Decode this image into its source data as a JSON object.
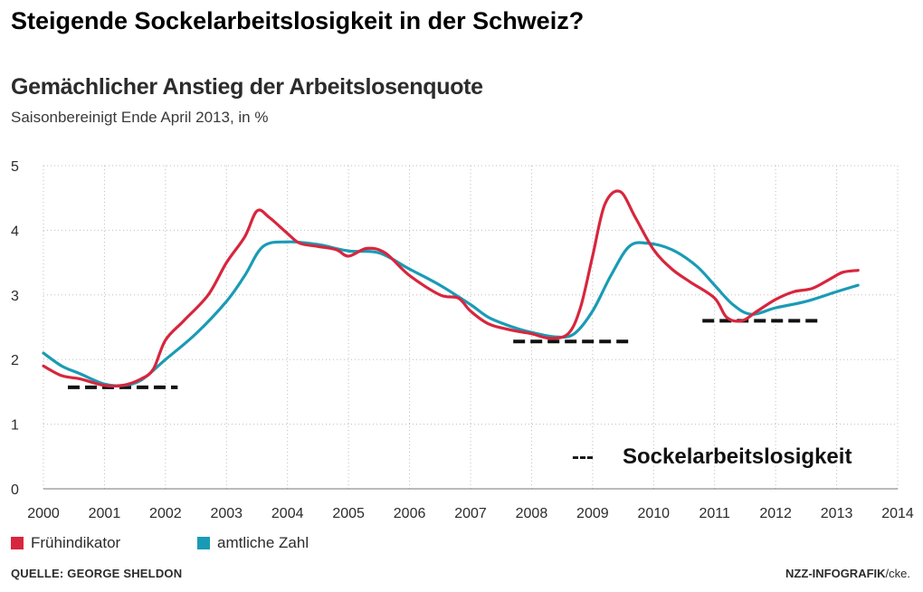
{
  "headline": "Steigende Sockelarbeitslosigkeit in der Schweiz?",
  "colors": {
    "fruehindikator": "#d7263d",
    "amtliche": "#1a9bb5",
    "sockel": "#111111",
    "grid": "#bdbdbd"
  },
  "legend": {
    "series1": "Frühindikator",
    "series2": "amtliche Zahl",
    "sockel": "Sockelarbeitslosigkeit",
    "sockel_symbol": "---"
  },
  "source": "QUELLE: GEORGE SHELDON",
  "credit_bold": "NZZ-INFOGRAFIK",
  "credit_rest": "/cke.",
  "chart_data": {
    "type": "line",
    "title": "Gemächlicher Anstieg der Arbeitslosenquote",
    "subtitle": "Saisonbereinigt Ende April 2013, in %",
    "xlim": [
      2000,
      2014
    ],
    "ylim": [
      0,
      5
    ],
    "xticks": [
      2000,
      2001,
      2002,
      2003,
      2004,
      2005,
      2006,
      2007,
      2008,
      2009,
      2010,
      2011,
      2012,
      2013,
      2014
    ],
    "yticks": [
      0,
      1,
      2,
      3,
      4,
      5
    ],
    "grid": true,
    "series": [
      {
        "name": "Frühindikator",
        "points": [
          [
            2000,
            1.9
          ],
          [
            2000.3,
            1.75
          ],
          [
            2000.6,
            1.7
          ],
          [
            2001,
            1.6
          ],
          [
            2001.3,
            1.6
          ],
          [
            2001.6,
            1.7
          ],
          [
            2001.8,
            1.85
          ],
          [
            2002,
            2.3
          ],
          [
            2002.3,
            2.6
          ],
          [
            2002.7,
            3.0
          ],
          [
            2003,
            3.5
          ],
          [
            2003.3,
            3.9
          ],
          [
            2003.5,
            4.3
          ],
          [
            2003.7,
            4.2
          ],
          [
            2004,
            3.95
          ],
          [
            2004.2,
            3.8
          ],
          [
            2004.5,
            3.75
          ],
          [
            2004.8,
            3.7
          ],
          [
            2005,
            3.6
          ],
          [
            2005.3,
            3.72
          ],
          [
            2005.6,
            3.65
          ],
          [
            2006,
            3.3
          ],
          [
            2006.5,
            3.0
          ],
          [
            2006.8,
            2.95
          ],
          [
            2007,
            2.75
          ],
          [
            2007.3,
            2.55
          ],
          [
            2007.7,
            2.45
          ],
          [
            2008,
            2.4
          ],
          [
            2008.3,
            2.33
          ],
          [
            2008.6,
            2.4
          ],
          [
            2008.8,
            2.8
          ],
          [
            2009,
            3.6
          ],
          [
            2009.2,
            4.4
          ],
          [
            2009.45,
            4.6
          ],
          [
            2009.7,
            4.2
          ],
          [
            2010,
            3.7
          ],
          [
            2010.3,
            3.4
          ],
          [
            2010.6,
            3.2
          ],
          [
            2011,
            2.95
          ],
          [
            2011.2,
            2.65
          ],
          [
            2011.45,
            2.6
          ],
          [
            2011.7,
            2.75
          ],
          [
            2012,
            2.93
          ],
          [
            2012.3,
            3.05
          ],
          [
            2012.6,
            3.1
          ],
          [
            2012.9,
            3.25
          ],
          [
            2013.1,
            3.35
          ],
          [
            2013.35,
            3.38
          ]
        ]
      },
      {
        "name": "amtliche Zahl",
        "points": [
          [
            2000,
            2.1
          ],
          [
            2000.3,
            1.9
          ],
          [
            2000.6,
            1.78
          ],
          [
            2001,
            1.62
          ],
          [
            2001.3,
            1.6
          ],
          [
            2001.6,
            1.68
          ],
          [
            2002,
            2.0
          ],
          [
            2002.5,
            2.4
          ],
          [
            2003,
            2.9
          ],
          [
            2003.3,
            3.3
          ],
          [
            2003.6,
            3.75
          ],
          [
            2004,
            3.82
          ],
          [
            2004.5,
            3.78
          ],
          [
            2005,
            3.68
          ],
          [
            2005.5,
            3.65
          ],
          [
            2006,
            3.4
          ],
          [
            2006.5,
            3.15
          ],
          [
            2007,
            2.85
          ],
          [
            2007.3,
            2.65
          ],
          [
            2007.7,
            2.5
          ],
          [
            2008,
            2.42
          ],
          [
            2008.4,
            2.35
          ],
          [
            2008.7,
            2.4
          ],
          [
            2009,
            2.75
          ],
          [
            2009.3,
            3.3
          ],
          [
            2009.6,
            3.75
          ],
          [
            2009.9,
            3.8
          ],
          [
            2010.3,
            3.7
          ],
          [
            2010.7,
            3.45
          ],
          [
            2011,
            3.15
          ],
          [
            2011.3,
            2.85
          ],
          [
            2011.6,
            2.7
          ],
          [
            2012,
            2.8
          ],
          [
            2012.5,
            2.9
          ],
          [
            2013,
            3.05
          ],
          [
            2013.35,
            3.15
          ]
        ]
      }
    ],
    "sockel_segments": [
      {
        "x": [
          2000.4,
          2002.2
        ],
        "y": 1.57
      },
      {
        "x": [
          2007.7,
          2009.6
        ],
        "y": 2.28
      },
      {
        "x": [
          2010.8,
          2012.7
        ],
        "y": 2.6
      }
    ]
  }
}
